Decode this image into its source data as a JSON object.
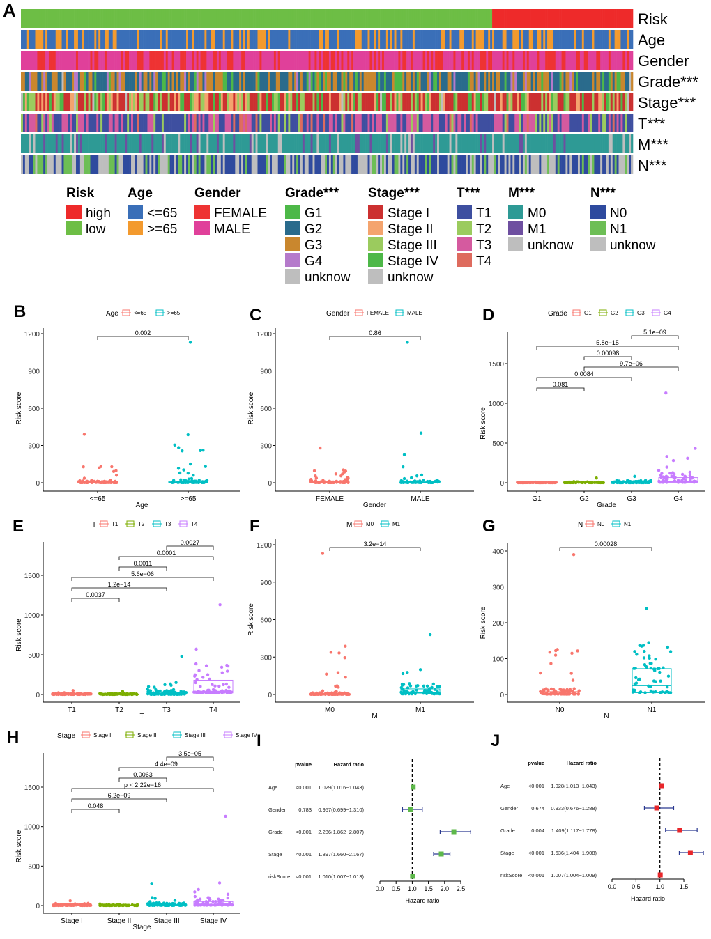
{
  "panel_letters": [
    "A",
    "B",
    "C",
    "D",
    "E",
    "F",
    "G",
    "H",
    "I",
    "J"
  ],
  "chart_data": [
    {
      "panel": "A",
      "type": "heatmap",
      "low_risk_fraction": 0.77,
      "rows": [
        {
          "label": "Risk",
          "legend_title": "Risk",
          "categories": [
            {
              "name": "high",
              "color": "#EE2A2A"
            },
            {
              "name": "low",
              "color": "#6DBE45"
            }
          ]
        },
        {
          "label": "Age",
          "legend_title": "Age",
          "categories": [
            {
              "name": "<=65",
              "color": "#3A6FB8"
            },
            {
              "name": ">=65",
              "color": "#F39A2E"
            }
          ]
        },
        {
          "label": "Gender",
          "legend_title": "Gender",
          "categories": [
            {
              "name": "FEMALE",
              "color": "#EE3333"
            },
            {
              "name": "MALE",
              "color": "#E0409A"
            }
          ]
        },
        {
          "label": "Grade***",
          "legend_title": "Grade***",
          "categories": [
            {
              "name": "G1",
              "color": "#4DB848"
            },
            {
              "name": "G2",
              "color": "#2A6B8C"
            },
            {
              "name": "G3",
              "color": "#C9872E"
            },
            {
              "name": "G4",
              "color": "#B57ACB"
            },
            {
              "name": "unknow",
              "color": "#BEBEBE"
            }
          ]
        },
        {
          "label": "Stage***",
          "legend_title": "Stage***",
          "categories": [
            {
              "name": "Stage I",
              "color": "#CC3030"
            },
            {
              "name": "Stage II",
              "color": "#F4A46E"
            },
            {
              "name": "Stage III",
              "color": "#9BCB5E"
            },
            {
              "name": "Stage IV",
              "color": "#4DB848"
            },
            {
              "name": "unknow",
              "color": "#BEBEBE"
            }
          ]
        },
        {
          "label": "T***",
          "legend_title": "T***",
          "categories": [
            {
              "name": "T1",
              "color": "#3E4FA0"
            },
            {
              "name": "T2",
              "color": "#9BCB5E"
            },
            {
              "name": "T3",
              "color": "#D55A9F"
            },
            {
              "name": "T4",
              "color": "#DE6B5E"
            }
          ]
        },
        {
          "label": "M***",
          "legend_title": "M***",
          "categories": [
            {
              "name": "M0",
              "color": "#2E9A95"
            },
            {
              "name": "M1",
              "color": "#6E4FA0"
            },
            {
              "name": "unknow",
              "color": "#BEBEBE"
            }
          ]
        },
        {
          "label": "N***",
          "legend_title": "N***",
          "categories": [
            {
              "name": "N0",
              "color": "#2E4A9E"
            },
            {
              "name": "N1",
              "color": "#6DBE55"
            },
            {
              "name": "unknow",
              "color": "#BEBEBE"
            }
          ]
        }
      ]
    },
    {
      "panel": "B",
      "type": "box",
      "legend_title": "Age",
      "xlabel": "Age",
      "ylabel": "Risk score",
      "ylim": [
        0,
        1200
      ],
      "yticks": [
        0,
        300,
        600,
        900,
        1200
      ],
      "groups": [
        {
          "name": "<=65",
          "color": "#F8766D",
          "q1": 1,
          "median": 3,
          "q3": 8,
          "max": 390
        },
        {
          "name": ">=65",
          "color": "#00BFC4",
          "q1": 1,
          "median": 3,
          "q3": 10,
          "max": 1130
        }
      ],
      "comparisons": [
        {
          "a": 0,
          "b": 1,
          "p": "0.002"
        }
      ]
    },
    {
      "panel": "C",
      "type": "box",
      "legend_title": "Gender",
      "xlabel": "Gender",
      "ylabel": "Risk score",
      "ylim": [
        0,
        1200
      ],
      "yticks": [
        0,
        300,
        600,
        900,
        1200
      ],
      "groups": [
        {
          "name": "FEMALE",
          "color": "#F8766D",
          "q1": 1,
          "median": 3,
          "q3": 8,
          "max": 280
        },
        {
          "name": "MALE",
          "color": "#00BFC4",
          "q1": 1,
          "median": 3,
          "q3": 10,
          "max": 1130
        }
      ],
      "comparisons": [
        {
          "a": 0,
          "b": 1,
          "p": "0.86"
        }
      ]
    },
    {
      "panel": "D",
      "type": "box",
      "legend_title": "Grade",
      "xlabel": "Grade",
      "ylabel": "Risk score",
      "ylim": [
        0,
        1500
      ],
      "yticks": [
        0,
        500,
        1000,
        1500
      ],
      "groups": [
        {
          "name": "G1",
          "color": "#F8766D",
          "q1": 1,
          "median": 2,
          "q3": 3,
          "max": 8
        },
        {
          "name": "G2",
          "color": "#7CAE00",
          "q1": 1,
          "median": 2,
          "q3": 6,
          "max": 60
        },
        {
          "name": "G3",
          "color": "#00BFC4",
          "q1": 1,
          "median": 3,
          "q3": 10,
          "max": 80
        },
        {
          "name": "G4",
          "color": "#C77CFF",
          "q1": 5,
          "median": 15,
          "q3": 65,
          "max": 1130
        }
      ],
      "comparisons": [
        {
          "a": 0,
          "b": 1,
          "p": "0.081"
        },
        {
          "a": 0,
          "b": 2,
          "p": "0.0084"
        },
        {
          "a": 1,
          "b": 3,
          "p": "9.7e−06"
        },
        {
          "a": 1,
          "b": 2,
          "p": "0.00098"
        },
        {
          "a": 0,
          "b": 3,
          "p": "5.8e−15"
        },
        {
          "a": 2,
          "b": 3,
          "p": "5.1e−09"
        }
      ]
    },
    {
      "panel": "E",
      "type": "box",
      "legend_title": "T",
      "xlabel": "T",
      "ylabel": "Risk score",
      "ylim": [
        0,
        1500
      ],
      "yticks": [
        0,
        500,
        1000,
        1500
      ],
      "groups": [
        {
          "name": "T1",
          "color": "#F8766D",
          "q1": 1,
          "median": 2,
          "q3": 6,
          "max": 50
        },
        {
          "name": "T2",
          "color": "#7CAE00",
          "q1": 1,
          "median": 2,
          "q3": 5,
          "max": 40
        },
        {
          "name": "T3",
          "color": "#00BFC4",
          "q1": 2,
          "median": 5,
          "q3": 25,
          "max": 480
        },
        {
          "name": "T4",
          "color": "#C77CFF",
          "q1": 20,
          "median": 40,
          "q3": 180,
          "max": 1130
        }
      ],
      "comparisons": [
        {
          "a": 0,
          "b": 1,
          "p": "0.0037"
        },
        {
          "a": 0,
          "b": 2,
          "p": "1.2e−14"
        },
        {
          "a": 0,
          "b": 3,
          "p": "5.6e−06"
        },
        {
          "a": 1,
          "b": 2,
          "p": "0.0011"
        },
        {
          "a": 1,
          "b": 3,
          "p": "0.0001"
        },
        {
          "a": 2,
          "b": 3,
          "p": "0.0027"
        }
      ]
    },
    {
      "panel": "F",
      "type": "box",
      "legend_title": "M",
      "xlabel": "M",
      "ylabel": "Risk score",
      "ylim": [
        0,
        1200
      ],
      "yticks": [
        0,
        300,
        600,
        900,
        1200
      ],
      "groups": [
        {
          "name": "M0",
          "color": "#F8766D",
          "q1": 1,
          "median": 3,
          "q3": 8,
          "max": 1130
        },
        {
          "name": "M1",
          "color": "#00BFC4",
          "q1": 5,
          "median": 15,
          "q3": 45,
          "max": 480
        }
      ],
      "comparisons": [
        {
          "a": 0,
          "b": 1,
          "p": "3.2e−14"
        }
      ]
    },
    {
      "panel": "G",
      "type": "box",
      "legend_title": "N",
      "xlabel": "N",
      "ylabel": "Risk score",
      "ylim": [
        0,
        400
      ],
      "yticks": [
        0,
        100,
        200,
        300,
        400
      ],
      "groups": [
        {
          "name": "N0",
          "color": "#F8766D",
          "q1": 1,
          "median": 3,
          "q3": 8,
          "max": 390
        },
        {
          "name": "N1",
          "color": "#00BFC4",
          "q1": 5,
          "median": 25,
          "q3": 72,
          "max": 240
        }
      ],
      "comparisons": [
        {
          "a": 0,
          "b": 1,
          "p": "0.00028"
        }
      ]
    },
    {
      "panel": "H",
      "type": "box",
      "legend_title": "Stage",
      "xlabel": "Stage",
      "ylabel": "Risk score",
      "ylim": [
        0,
        1500
      ],
      "yticks": [
        0,
        500,
        1000,
        1500
      ],
      "groups": [
        {
          "name": "Stage I",
          "color": "#F8766D",
          "q1": 1,
          "median": 3,
          "q3": 8,
          "max": 60
        },
        {
          "name": "Stage II",
          "color": "#7CAE00",
          "q1": 1,
          "median": 2,
          "q3": 5,
          "max": 20
        },
        {
          "name": "Stage III",
          "color": "#00BFC4",
          "q1": 2,
          "median": 5,
          "q3": 15,
          "max": 280
        },
        {
          "name": "Stage IV",
          "color": "#C77CFF",
          "q1": 5,
          "median": 15,
          "q3": 50,
          "max": 1130
        }
      ],
      "comparisons": [
        {
          "a": 0,
          "b": 1,
          "p": "0.048"
        },
        {
          "a": 0,
          "b": 2,
          "p": "6.2e−09"
        },
        {
          "a": 0,
          "b": 3,
          "p": "p < 2.22e−16"
        },
        {
          "a": 1,
          "b": 2,
          "p": "0.0063"
        },
        {
          "a": 1,
          "b": 3,
          "p": "4.4e−09"
        },
        {
          "a": 2,
          "b": 3,
          "p": "3.5e−05"
        }
      ]
    },
    {
      "panel": "I",
      "type": "forest",
      "col_pvalue": "pvalue",
      "col_hr": "Hazard ratio",
      "xlabel": "Hazard ratio",
      "xlim": [
        0,
        2.5
      ],
      "xticks": [
        "0.0",
        "0.5",
        "1.0",
        "1.5",
        "2.0",
        "2.5"
      ],
      "marker_color": "#5DB84A",
      "rows": [
        {
          "label": "Age",
          "pvalue": "<0.001",
          "text": "1.029(1.016−1.043)",
          "hr": 1.029,
          "lo": 1.016,
          "hi": 1.043
        },
        {
          "label": "Gender",
          "pvalue": "0.783",
          "text": "0.957(0.699−1.310)",
          "hr": 0.957,
          "lo": 0.699,
          "hi": 1.31
        },
        {
          "label": "Grade",
          "pvalue": "<0.001",
          "text": "2.286(1.862−2.807)",
          "hr": 2.286,
          "lo": 1.862,
          "hi": 2.807
        },
        {
          "label": "Stage",
          "pvalue": "<0.001",
          "text": "1.897(1.660−2.167)",
          "hr": 1.897,
          "lo": 1.66,
          "hi": 2.167
        },
        {
          "label": "riskScore",
          "pvalue": "<0.001",
          "text": "1.010(1.007−1.013)",
          "hr": 1.01,
          "lo": 1.007,
          "hi": 1.013
        }
      ]
    },
    {
      "panel": "J",
      "type": "forest",
      "col_pvalue": "pvalue",
      "col_hr": "Hazard ratio",
      "xlabel": "Hazard ratio",
      "xlim": [
        0,
        1.5
      ],
      "xticks": [
        "0.0",
        "0.5",
        "1.0",
        "1.5"
      ],
      "marker_color": "#E8262A",
      "rows": [
        {
          "label": "Age",
          "pvalue": "<0.001",
          "text": "1.028(1.013−1.043)",
          "hr": 1.028,
          "lo": 1.013,
          "hi": 1.043
        },
        {
          "label": "Gender",
          "pvalue": "0.674",
          "text": "0.933(0.676−1.288)",
          "hr": 0.933,
          "lo": 0.676,
          "hi": 1.288
        },
        {
          "label": "Grade",
          "pvalue": "0.004",
          "text": "1.409(1.117−1.778)",
          "hr": 1.409,
          "lo": 1.117,
          "hi": 1.778
        },
        {
          "label": "Stage",
          "pvalue": "<0.001",
          "text": "1.636(1.404−1.908)",
          "hr": 1.636,
          "lo": 1.404,
          "hi": 1.908
        },
        {
          "label": "riskScore",
          "pvalue": "<0.001",
          "text": "1.007(1.004−1.009)",
          "hr": 1.007,
          "lo": 1.004,
          "hi": 1.009
        }
      ]
    }
  ]
}
